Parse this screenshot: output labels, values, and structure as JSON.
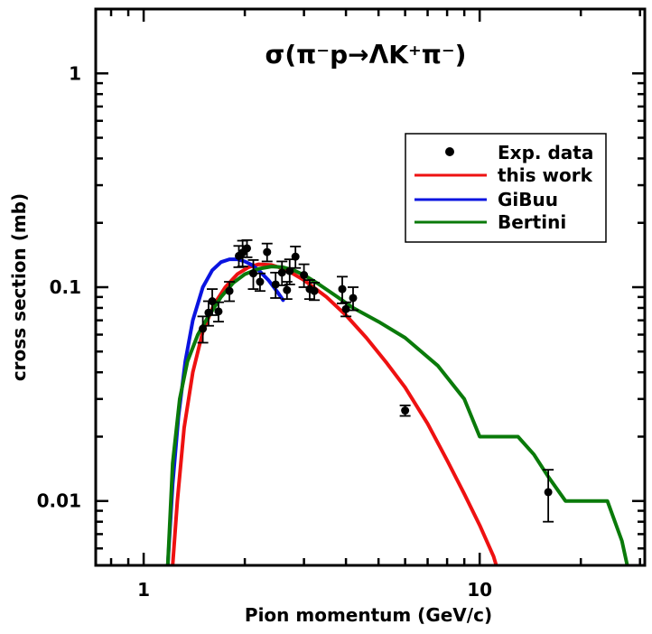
{
  "chart_data": {
    "type": "scatter",
    "title": "σ(π⁻p→ΛK⁺π⁻)",
    "xlabel": "Pion momentum (GeV/c)",
    "ylabel": "cross section (mb)",
    "xscale": "log",
    "yscale": "log",
    "xlim": [
      0.72,
      31
    ],
    "ylim": [
      0.005,
      2.0
    ],
    "xticks": [
      {
        "value": 1,
        "label": "1"
      },
      {
        "value": 10,
        "label": "10"
      }
    ],
    "yticks": [
      {
        "value": 0.01,
        "label": "0.01"
      },
      {
        "value": 0.1,
        "label": "0.1"
      },
      {
        "value": 1,
        "label": "1"
      }
    ],
    "legend_position": "top-right",
    "legend": [
      {
        "name": "Exp. data",
        "kind": "marker",
        "color": "#000000"
      },
      {
        "name": "this work",
        "kind": "line",
        "color": "#ee1111"
      },
      {
        "name": "GiBuu",
        "kind": "line",
        "color": "#0a14e0"
      },
      {
        "name": "Bertini",
        "kind": "line",
        "color": "#0a7a0a"
      }
    ],
    "points": [
      {
        "x": 1.5,
        "y": 0.064,
        "err": 0.009
      },
      {
        "x": 1.56,
        "y": 0.076,
        "err": 0.01
      },
      {
        "x": 1.6,
        "y": 0.086,
        "err": 0.012
      },
      {
        "x": 1.67,
        "y": 0.077,
        "err": 0.008
      },
      {
        "x": 1.8,
        "y": 0.096,
        "err": 0.01
      },
      {
        "x": 1.92,
        "y": 0.14,
        "err": 0.016
      },
      {
        "x": 1.97,
        "y": 0.145,
        "err": 0.02
      },
      {
        "x": 2.03,
        "y": 0.152,
        "err": 0.014
      },
      {
        "x": 2.12,
        "y": 0.116,
        "err": 0.018
      },
      {
        "x": 2.22,
        "y": 0.106,
        "err": 0.01
      },
      {
        "x": 2.33,
        "y": 0.146,
        "err": 0.014
      },
      {
        "x": 2.47,
        "y": 0.103,
        "err": 0.014
      },
      {
        "x": 2.58,
        "y": 0.117,
        "err": 0.015
      },
      {
        "x": 2.67,
        "y": 0.097,
        "err": 0.009
      },
      {
        "x": 2.72,
        "y": 0.119,
        "err": 0.016
      },
      {
        "x": 2.83,
        "y": 0.139,
        "err": 0.016
      },
      {
        "x": 3.0,
        "y": 0.114,
        "err": 0.014
      },
      {
        "x": 3.12,
        "y": 0.098,
        "err": 0.01
      },
      {
        "x": 3.22,
        "y": 0.096,
        "err": 0.009
      },
      {
        "x": 3.9,
        "y": 0.098,
        "err": 0.014
      },
      {
        "x": 4.0,
        "y": 0.079,
        "err": 0.006
      },
      {
        "x": 4.2,
        "y": 0.089,
        "err": 0.011
      },
      {
        "x": 6.0,
        "y": 0.0265,
        "err": 0.0015
      },
      {
        "x": 16.0,
        "y": 0.011,
        "err": 0.003
      }
    ],
    "series": [
      {
        "name": "this work",
        "color": "#ee1111",
        "x": [
          1.22,
          1.26,
          1.32,
          1.4,
          1.5,
          1.62,
          1.75,
          1.9,
          2.05,
          2.2,
          2.4,
          2.65,
          3.0,
          3.5,
          4.0,
          4.6,
          5.3,
          6.0,
          7.0,
          8.0,
          9.0,
          10.0,
          11.0,
          11.2
        ],
        "y": [
          0.005,
          0.01,
          0.022,
          0.04,
          0.062,
          0.083,
          0.1,
          0.115,
          0.124,
          0.128,
          0.127,
          0.121,
          0.108,
          0.09,
          0.074,
          0.058,
          0.044,
          0.034,
          0.023,
          0.0155,
          0.0108,
          0.0077,
          0.0055,
          0.005
        ]
      },
      {
        "name": "GiBuu",
        "color": "#0a14e0",
        "x": [
          1.18,
          1.22,
          1.27,
          1.33,
          1.4,
          1.5,
          1.6,
          1.7,
          1.8,
          1.9,
          2.0,
          2.1,
          2.2,
          2.35,
          2.5,
          2.6
        ],
        "y": [
          0.005,
          0.012,
          0.025,
          0.045,
          0.07,
          0.1,
          0.12,
          0.131,
          0.135,
          0.135,
          0.132,
          0.127,
          0.12,
          0.108,
          0.095,
          0.087
        ]
      },
      {
        "name": "Bertini",
        "color": "#0a7a0a",
        "x": [
          1.18,
          1.22,
          1.28,
          1.35,
          1.45,
          1.55,
          1.7,
          1.85,
          2.0,
          2.2,
          2.4,
          2.6,
          2.8,
          3.0,
          3.3,
          3.7,
          4.2,
          5.0,
          6.0,
          7.5,
          9.0,
          10.0,
          13.0,
          14.5,
          16.0,
          18.0,
          24.0,
          26.5,
          27.5
        ],
        "y": [
          0.005,
          0.015,
          0.03,
          0.045,
          0.06,
          0.072,
          0.09,
          0.105,
          0.115,
          0.122,
          0.125,
          0.124,
          0.12,
          0.114,
          0.104,
          0.092,
          0.08,
          0.069,
          0.058,
          0.043,
          0.03,
          0.02,
          0.02,
          0.0165,
          0.013,
          0.01,
          0.01,
          0.0065,
          0.005
        ]
      }
    ]
  }
}
